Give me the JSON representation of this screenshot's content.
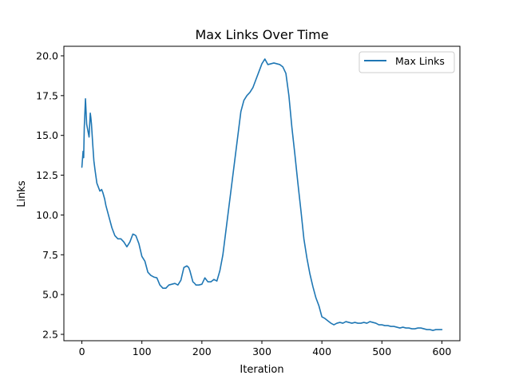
{
  "chart_data": {
    "type": "line",
    "title": "Max Links Over Time",
    "xlabel": "Iteration",
    "ylabel": "Links",
    "xlim": [
      -30,
      630
    ],
    "ylim": [
      2.1,
      20.6
    ],
    "x_ticks": [
      0,
      100,
      200,
      300,
      400,
      500,
      600
    ],
    "y_ticks": [
      2.5,
      5.0,
      7.5,
      10.0,
      12.5,
      15.0,
      17.5,
      20.0
    ],
    "x_tick_labels": [
      "0",
      "100",
      "200",
      "300",
      "400",
      "500",
      "600"
    ],
    "y_tick_labels": [
      "2.5",
      "5.0",
      "7.5",
      "10.0",
      "12.5",
      "15.0",
      "17.5",
      "20.0"
    ],
    "grid": false,
    "legend_position": "top-right",
    "colors": {
      "series": "#1f77b4"
    },
    "series": [
      {
        "name": "Max Links",
        "x": [
          0,
          2,
          3,
          4,
          6,
          8,
          10,
          12,
          14,
          15,
          16,
          18,
          20,
          22,
          25,
          30,
          33,
          35,
          38,
          40,
          45,
          50,
          55,
          60,
          65,
          70,
          75,
          80,
          85,
          88,
          90,
          92,
          95,
          100,
          105,
          110,
          115,
          120,
          125,
          130,
          135,
          140,
          145,
          150,
          155,
          160,
          165,
          170,
          175,
          178,
          180,
          185,
          188,
          190,
          195,
          200,
          205,
          210,
          215,
          220,
          225,
          230,
          235,
          240,
          245,
          250,
          255,
          260,
          265,
          270,
          275,
          280,
          285,
          290,
          295,
          300,
          305,
          310,
          315,
          320,
          325,
          330,
          335,
          340,
          345,
          350,
          355,
          360,
          365,
          370,
          375,
          380,
          385,
          390,
          395,
          400,
          405,
          410,
          415,
          420,
          425,
          430,
          435,
          440,
          445,
          450,
          455,
          460,
          465,
          470,
          475,
          480,
          485,
          490,
          495,
          500,
          505,
          510,
          515,
          520,
          525,
          530,
          535,
          540,
          545,
          550,
          555,
          560,
          565,
          570,
          575,
          580,
          585,
          590,
          595,
          600
        ],
        "values": [
          13.0,
          14.0,
          13.6,
          15.5,
          17.3,
          15.7,
          15.3,
          14.9,
          16.4,
          16.1,
          15.7,
          14.5,
          13.4,
          12.8,
          12.0,
          11.5,
          11.6,
          11.4,
          11.0,
          10.6,
          9.9,
          9.2,
          8.7,
          8.5,
          8.5,
          8.3,
          8.0,
          8.3,
          8.8,
          8.75,
          8.7,
          8.5,
          8.2,
          7.4,
          7.1,
          6.4,
          6.2,
          6.1,
          6.05,
          5.6,
          5.4,
          5.4,
          5.6,
          5.65,
          5.7,
          5.6,
          5.9,
          6.7,
          6.8,
          6.7,
          6.5,
          5.8,
          5.7,
          5.6,
          5.6,
          5.65,
          6.05,
          5.8,
          5.8,
          5.95,
          5.85,
          6.5,
          7.5,
          9.0,
          10.5,
          12.0,
          13.5,
          15.0,
          16.5,
          17.2,
          17.5,
          17.7,
          18.0,
          18.5,
          19.0,
          19.5,
          19.8,
          19.45,
          19.5,
          19.55,
          19.5,
          19.45,
          19.3,
          18.9,
          17.5,
          15.5,
          13.8,
          12.0,
          10.3,
          8.5,
          7.3,
          6.3,
          5.5,
          4.8,
          4.3,
          3.6,
          3.5,
          3.35,
          3.2,
          3.1,
          3.2,
          3.25,
          3.2,
          3.3,
          3.25,
          3.2,
          3.25,
          3.2,
          3.2,
          3.25,
          3.2,
          3.3,
          3.25,
          3.2,
          3.1,
          3.1,
          3.05,
          3.05,
          3.0,
          3.0,
          2.95,
          2.9,
          2.95,
          2.9,
          2.9,
          2.85,
          2.85,
          2.9,
          2.9,
          2.85,
          2.8,
          2.8,
          2.75,
          2.8,
          2.8,
          2.8
        ]
      }
    ]
  }
}
